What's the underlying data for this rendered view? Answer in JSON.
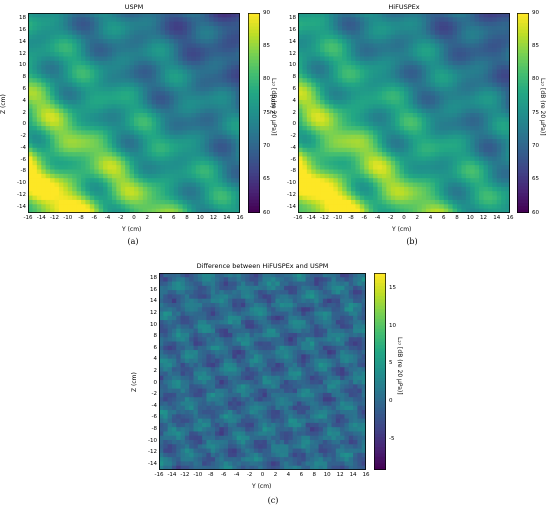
{
  "chart_data": [
    {
      "id": "a",
      "type": "heatmap",
      "title": "USPM",
      "caption": "(a)",
      "xlabel": "Y (cm)",
      "ylabel": "Z (cm)",
      "colorbar_label": "L₂₇ [dB (re 20 μPa)]",
      "xlim": [
        -16,
        16
      ],
      "ylim": [
        -15,
        19
      ],
      "x_ticks": [
        "-16",
        "-14",
        "-12",
        "-10",
        "-8",
        "-6",
        "-4",
        "-2",
        "0",
        "2",
        "4",
        "6",
        "8",
        "10",
        "12",
        "14",
        "16"
      ],
      "y_ticks": [
        "18",
        "16",
        "14",
        "12",
        "10",
        "8",
        "6",
        "4",
        "2",
        "0",
        "-2",
        "-4",
        "-6",
        "-8",
        "-10",
        "-12",
        "-14"
      ],
      "colorbar_range": [
        60,
        90
      ],
      "colorbar_ticks": [
        "90",
        "85",
        "80",
        "75",
        "70",
        "65",
        "60"
      ],
      "colormap": "viridis",
      "field_description_values": {
        "diagonal_bands_peak": 90,
        "top_right_min": 62,
        "background": 72
      }
    },
    {
      "id": "b",
      "type": "heatmap",
      "title": "HiFUSPEx",
      "caption": "(b)",
      "xlabel": "Y (cm)",
      "ylabel": "Z (cm)",
      "colorbar_label": "L₂₇ [dB (re 20 μPa)]",
      "xlim": [
        -16,
        16
      ],
      "ylim": [
        -15,
        19
      ],
      "x_ticks": [
        "-16",
        "-14",
        "-12",
        "-10",
        "-8",
        "-6",
        "-4",
        "-2",
        "0",
        "2",
        "4",
        "6",
        "8",
        "10",
        "12",
        "14",
        "16"
      ],
      "y_ticks": [
        "18",
        "16",
        "14",
        "12",
        "10",
        "8",
        "6",
        "4",
        "2",
        "0",
        "-2",
        "-4",
        "-6",
        "-8",
        "-10",
        "-12",
        "-14"
      ],
      "colorbar_range": [
        60,
        90
      ],
      "colorbar_ticks": [
        "90",
        "85",
        "80",
        "75",
        "70",
        "65",
        "60"
      ],
      "colormap": "viridis",
      "field_description_values": {
        "diagonal_bands_peak": 89,
        "top_right_min": 65,
        "background": 73
      }
    },
    {
      "id": "c",
      "type": "heatmap",
      "title": "Difference between HiFUSPEx and USPM",
      "caption": "(c)",
      "xlabel": "Y (cm)",
      "ylabel": "Z (cm)",
      "colorbar_label": "L₂₇ [dB (re 20 μPa)]",
      "xlim": [
        -16,
        16
      ],
      "ylim": [
        -15,
        19
      ],
      "x_ticks": [
        "-16",
        "-14",
        "-12",
        "-10",
        "-8",
        "-6",
        "-4",
        "-2",
        "0",
        "2",
        "4",
        "6",
        "8",
        "10",
        "12",
        "14",
        "16"
      ],
      "y_ticks": [
        "18",
        "16",
        "14",
        "12",
        "10",
        "8",
        "6",
        "4",
        "2",
        "0",
        "-2",
        "-4",
        "-6",
        "-8",
        "-10",
        "-12",
        "-14"
      ],
      "colorbar_range": [
        -9,
        17
      ],
      "colorbar_ticks": [
        "15",
        "10",
        "5",
        "0",
        "-5"
      ],
      "colorbar_tick_values": [
        15,
        10,
        5,
        0,
        -5
      ],
      "colormap": "viridis",
      "field_description_values": {
        "background": 0,
        "peak": 12
      }
    }
  ]
}
